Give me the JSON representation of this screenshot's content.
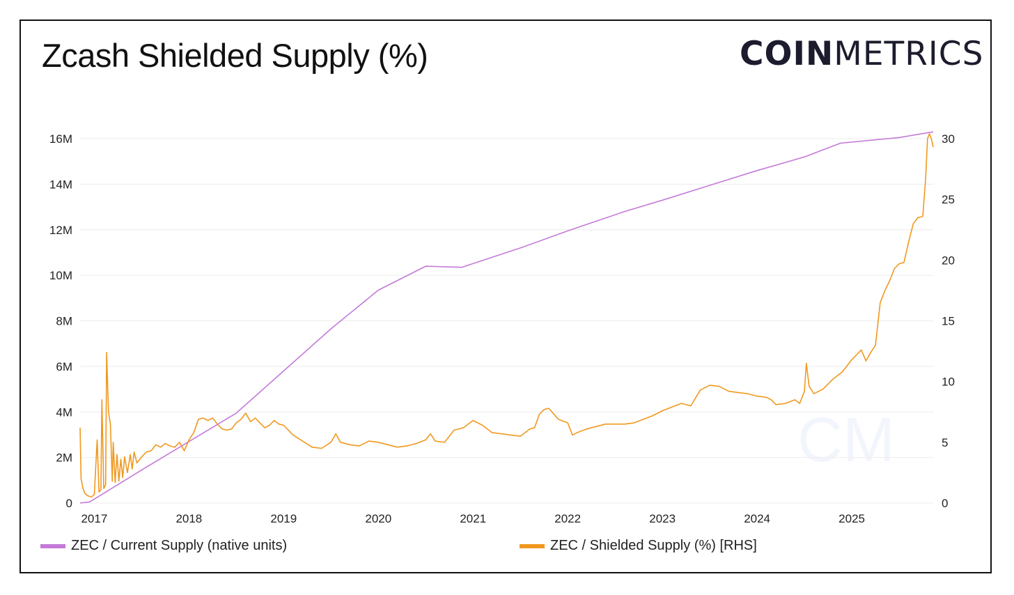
{
  "header": {
    "title": "Zcash Shielded Supply (%)"
  },
  "logo": {
    "bold": "COIN",
    "light": "METRICS"
  },
  "watermark": {
    "text": "CM"
  },
  "colors": {
    "supply": "#c47ad8",
    "shielded": "#f0981e",
    "grid": "#ececec",
    "axis": "#222222"
  },
  "chart_data": {
    "type": "line",
    "title": "Zcash Shielded Supply (%)",
    "x_ticks": [
      "2017",
      "2018",
      "2019",
      "2020",
      "2021",
      "2022",
      "2023",
      "2024",
      "2025"
    ],
    "x_range": [
      2016.85,
      2025.86
    ],
    "left_axis": {
      "ticks": [
        "0",
        "2M",
        "4M",
        "6M",
        "8M",
        "10M",
        "12M",
        "14M",
        "16M"
      ],
      "ylim": [
        0,
        16000000
      ]
    },
    "right_axis": {
      "ticks": [
        "0",
        "5",
        "10",
        "15",
        "20",
        "25",
        "30"
      ],
      "ylim": [
        0,
        30
      ]
    },
    "grid": true,
    "legend_position": "bottom",
    "series": [
      {
        "name": "ZEC / Current Supply (native units)",
        "axis": "left",
        "color": "#c47ad8",
        "x": [
          2016.85,
          2016.95,
          2017.05,
          2017.5,
          2018.0,
          2018.5,
          2019.0,
          2019.5,
          2020.0,
          2020.5,
          2020.88,
          2021.5,
          2022.0,
          2022.6,
          2023.0,
          2023.5,
          2024.0,
          2024.5,
          2024.88,
          2025.5,
          2025.86
        ],
        "values": [
          0,
          50000,
          300000,
          1450000,
          2700000,
          3950000,
          5800000,
          7650000,
          9350000,
          10400000,
          10350000,
          11200000,
          11950000,
          12800000,
          13300000,
          13950000,
          14600000,
          15200000,
          15800000,
          16050000,
          16300000
        ]
      },
      {
        "name": "ZEC / Shielded Supply (%) [RHS]",
        "axis": "right",
        "color": "#f0981e",
        "x": [
          2016.85,
          2016.86,
          2016.88,
          2016.9,
          2016.93,
          2016.97,
          2017.0,
          2017.03,
          2017.05,
          2017.07,
          2017.08,
          2017.1,
          2017.12,
          2017.13,
          2017.15,
          2017.17,
          2017.19,
          2017.2,
          2017.22,
          2017.24,
          2017.26,
          2017.28,
          2017.3,
          2017.32,
          2017.35,
          2017.38,
          2017.4,
          2017.42,
          2017.45,
          2017.5,
          2017.55,
          2017.6,
          2017.65,
          2017.7,
          2017.75,
          2017.8,
          2017.85,
          2017.9,
          2017.95,
          2018.0,
          2018.05,
          2018.1,
          2018.15,
          2018.2,
          2018.25,
          2018.3,
          2018.35,
          2018.4,
          2018.45,
          2018.5,
          2018.55,
          2018.6,
          2018.65,
          2018.7,
          2018.75,
          2018.8,
          2018.85,
          2018.9,
          2018.95,
          2019.0,
          2019.1,
          2019.2,
          2019.3,
          2019.4,
          2019.5,
          2019.55,
          2019.6,
          2019.7,
          2019.8,
          2019.9,
          2020.0,
          2020.1,
          2020.2,
          2020.3,
          2020.4,
          2020.5,
          2020.55,
          2020.6,
          2020.7,
          2020.8,
          2020.9,
          2021.0,
          2021.1,
          2021.2,
          2021.3,
          2021.4,
          2021.5,
          2021.6,
          2021.65,
          2021.7,
          2021.75,
          2021.8,
          2021.9,
          2022.0,
          2022.05,
          2022.1,
          2022.2,
          2022.3,
          2022.4,
          2022.5,
          2022.6,
          2022.7,
          2022.8,
          2022.9,
          2023.0,
          2023.1,
          2023.2,
          2023.3,
          2023.4,
          2023.5,
          2023.6,
          2023.7,
          2023.8,
          2023.9,
          2024.0,
          2024.1,
          2024.15,
          2024.2,
          2024.3,
          2024.4,
          2024.45,
          2024.5,
          2024.52,
          2024.55,
          2024.6,
          2024.7,
          2024.8,
          2024.9,
          2025.0,
          2025.1,
          2025.15,
          2025.2,
          2025.25,
          2025.3,
          2025.35,
          2025.4,
          2025.45,
          2025.5,
          2025.55,
          2025.6,
          2025.65,
          2025.7,
          2025.75,
          2025.78,
          2025.8,
          2025.82,
          2025.84,
          2025.86
        ],
        "values": [
          6.2,
          2.0,
          1.2,
          0.8,
          0.6,
          0.5,
          0.7,
          5.2,
          0.9,
          1.1,
          8.5,
          1.2,
          1.5,
          12.4,
          7.5,
          6.5,
          1.8,
          5.0,
          1.7,
          4.0,
          1.8,
          3.6,
          2.1,
          3.8,
          2.5,
          4.0,
          2.8,
          4.2,
          3.3,
          3.8,
          4.2,
          4.3,
          4.8,
          4.6,
          4.9,
          4.7,
          4.6,
          5.0,
          4.3,
          5.2,
          5.8,
          6.9,
          7.0,
          6.8,
          7.0,
          6.5,
          6.1,
          6.0,
          6.1,
          6.6,
          6.9,
          7.4,
          6.7,
          7.0,
          6.6,
          6.2,
          6.4,
          6.8,
          6.5,
          6.4,
          5.6,
          5.1,
          4.6,
          4.5,
          5.0,
          5.7,
          5.0,
          4.8,
          4.7,
          5.1,
          5.0,
          4.8,
          4.6,
          4.7,
          4.9,
          5.2,
          5.7,
          5.1,
          5.0,
          6.0,
          6.2,
          6.8,
          6.4,
          5.8,
          5.7,
          5.6,
          5.5,
          6.1,
          6.2,
          7.3,
          7.7,
          7.8,
          6.9,
          6.6,
          5.6,
          5.8,
          6.1,
          6.3,
          6.5,
          6.5,
          6.5,
          6.6,
          6.9,
          7.2,
          7.6,
          7.9,
          8.2,
          8.0,
          9.3,
          9.7,
          9.6,
          9.2,
          9.1,
          9.0,
          8.8,
          8.7,
          8.5,
          8.1,
          8.2,
          8.5,
          8.2,
          9.2,
          11.5,
          9.6,
          9.0,
          9.4,
          10.2,
          10.8,
          11.8,
          12.6,
          11.7,
          12.4,
          13.0,
          16.5,
          17.5,
          18.3,
          19.3,
          19.7,
          19.8,
          21.5,
          23.0,
          23.5,
          23.6,
          26.7,
          30.0,
          30.4,
          30.0,
          29.3
        ]
      }
    ]
  },
  "legend": {
    "left": "ZEC / Current Supply (native units)",
    "right": "ZEC / Shielded Supply (%) [RHS]"
  }
}
